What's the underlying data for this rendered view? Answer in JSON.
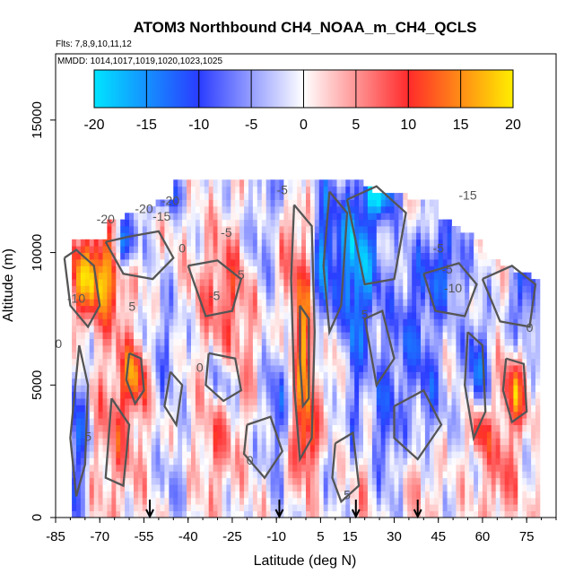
{
  "chart_data": {
    "type": "heatmap",
    "title": "ATOM3 Northbound CH4_NOAA_m_CH4_QCLS",
    "flights_line": "Flts: 7,8,9,10,11,12",
    "dates_line": "MMDD: 1014,1017,1019,1020,1023,1025",
    "xlabel": "Latitude (deg N)",
    "ylabel": "Altitude (m)",
    "xlim": [
      -85,
      85
    ],
    "ylim": [
      0,
      17500
    ],
    "x_ticks": [
      -85,
      -70,
      -55,
      -40,
      -25,
      -10,
      5,
      15,
      30,
      45,
      60,
      75
    ],
    "y_ticks": [
      0,
      5000,
      10000,
      15000
    ],
    "colorbar": {
      "range": [
        -20,
        20
      ],
      "ticks": [
        -20,
        -15,
        -10,
        -5,
        0,
        5,
        10,
        15,
        20
      ],
      "colors": {
        "low": "#00e5ff",
        "mid_low": "#2a3cff",
        "zero": "#ffffff",
        "mid_high": "#ff2b2b",
        "high": "#ffee00"
      }
    },
    "arrows_latitude": [
      -53,
      -9,
      17,
      38
    ],
    "contour_labels": [
      {
        "text": "-20",
        "lat": -68,
        "alt": 11100
      },
      {
        "text": "-20",
        "lat": -55,
        "alt": 11500
      },
      {
        "text": "-20",
        "lat": -46,
        "alt": 11800
      },
      {
        "text": "-15",
        "lat": -49,
        "alt": 11200
      },
      {
        "text": "-15",
        "lat": 55,
        "alt": 12000
      },
      {
        "text": "-5",
        "lat": -8,
        "alt": 12200
      },
      {
        "text": "-5",
        "lat": -27,
        "alt": 10600
      },
      {
        "text": "-5",
        "lat": -31,
        "alt": 8200
      },
      {
        "text": "-5",
        "lat": 45,
        "alt": 10000
      },
      {
        "text": "-5",
        "lat": 48,
        "alt": 9200
      },
      {
        "text": "-10",
        "lat": -78,
        "alt": 8100
      },
      {
        "text": "-10",
        "lat": 50,
        "alt": 8500
      },
      {
        "text": "5",
        "lat": -22,
        "alt": 9000
      },
      {
        "text": "5",
        "lat": -59,
        "alt": 7800
      },
      {
        "text": "5",
        "lat": 20,
        "alt": 7500
      },
      {
        "text": "5",
        "lat": -74,
        "alt": 2900
      },
      {
        "text": "0",
        "lat": -84,
        "alt": 6400
      },
      {
        "text": "0",
        "lat": -42,
        "alt": 10000
      },
      {
        "text": "0",
        "lat": -36,
        "alt": 5500
      },
      {
        "text": "0",
        "lat": -19,
        "alt": 2000
      },
      {
        "text": "0",
        "lat": 76,
        "alt": 7000
      },
      {
        "text": "5",
        "lat": 14,
        "alt": 700
      }
    ],
    "grid": false,
    "legend": "none"
  }
}
